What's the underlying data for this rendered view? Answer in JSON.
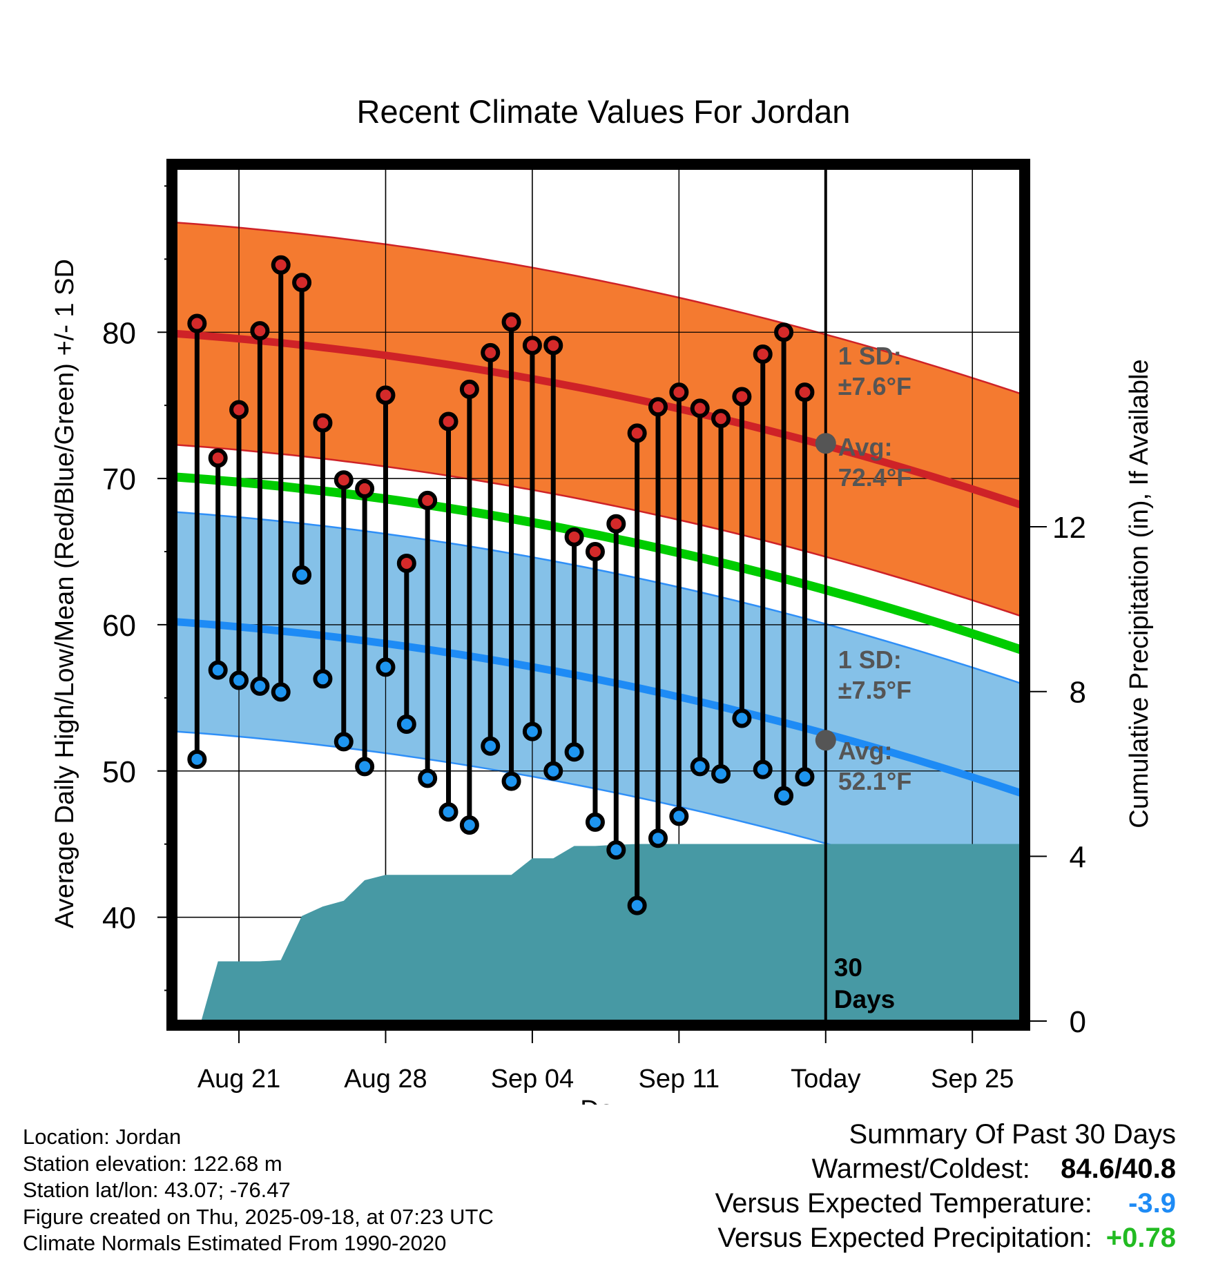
{
  "chart_data": {
    "type": "line",
    "title": "Recent Climate Values For Jordan",
    "xlabel": "Day",
    "ylabel": "Average Daily High/Low/Mean (Red/Blue/Green) +/- 1 SD",
    "y2label": "Cumulative Precipitation (in), If Available",
    "x_ticks": [
      "Aug 21",
      "Aug 28",
      "Sep 04",
      "Sep 11",
      "Today",
      "Sep 25"
    ],
    "x_tick_days": [
      2,
      9,
      16,
      23,
      30,
      37
    ],
    "x_range": [
      -1,
      39.3
    ],
    "ylim": [
      32.9,
      91.2
    ],
    "y_ticks": [
      40,
      50,
      60,
      70,
      80
    ],
    "y2lim": [
      0,
      20.7
    ],
    "y2_ticks": [
      0,
      4,
      8,
      12
    ],
    "today_day": 30,
    "today_label": "30\nDays",
    "high_avg": {
      "start": 79.9,
      "end": 68.2
    },
    "high_sd": 7.6,
    "high_sd_label": "1 SD:\n±7.6°F",
    "high_avg_label": "Avg:\n72.4°F",
    "high_today": 72.4,
    "low_avg": {
      "start": 60.2,
      "end": 48.5
    },
    "low_sd": 7.5,
    "low_sd_label": "1 SD:\n±7.5°F",
    "low_avg_label": "Avg:\n52.1°F",
    "low_today": 52.1,
    "mean_avg": {
      "start": 70.1,
      "end": 58.3
    },
    "daily_highs": [
      80.6,
      71.4,
      74.7,
      80.1,
      84.6,
      83.4,
      73.8,
      69.9,
      69.3,
      75.7,
      64.2,
      68.5,
      73.9,
      76.1,
      78.6,
      80.7,
      79.1,
      79.1,
      66.0,
      65.0,
      66.9,
      73.1,
      74.9,
      75.9,
      74.8,
      74.1,
      75.6,
      78.5,
      80.0,
      75.9
    ],
    "daily_lows": [
      50.8,
      56.9,
      56.2,
      55.8,
      55.4,
      63.4,
      56.3,
      52.0,
      50.3,
      57.1,
      53.2,
      49.5,
      47.2,
      46.3,
      51.7,
      49.3,
      52.7,
      50.0,
      51.3,
      46.5,
      44.6,
      40.8,
      45.4,
      46.9,
      50.3,
      49.8,
      53.6,
      50.1,
      48.3,
      49.6
    ],
    "precip_cumulative": [
      [
        0,
        0
      ],
      [
        1,
        1.45
      ],
      [
        2,
        1.45
      ],
      [
        3,
        1.45
      ],
      [
        4,
        1.48
      ],
      [
        5,
        2.55
      ],
      [
        6,
        2.78
      ],
      [
        7,
        2.92
      ],
      [
        8,
        3.42
      ],
      [
        9,
        3.55
      ],
      [
        10,
        3.55
      ],
      [
        11,
        3.55
      ],
      [
        12,
        3.55
      ],
      [
        13,
        3.55
      ],
      [
        14,
        3.55
      ],
      [
        15,
        3.55
      ],
      [
        16,
        3.95
      ],
      [
        17,
        3.95
      ],
      [
        18,
        4.25
      ],
      [
        19,
        4.25
      ],
      [
        20,
        4.28
      ],
      [
        21,
        4.3
      ],
      [
        22,
        4.3
      ],
      [
        23,
        4.3
      ],
      [
        24,
        4.3
      ],
      [
        25,
        4.3
      ],
      [
        26,
        4.3
      ],
      [
        27,
        4.3
      ],
      [
        28,
        4.3
      ],
      [
        29,
        4.3
      ],
      [
        30,
        4.3
      ],
      [
        39.3,
        4.3
      ]
    ],
    "colors": {
      "high_band": "#F47A30",
      "high_line": "#CE2227",
      "low_band": "#85C1E8",
      "low_line": "#1E8BF5",
      "low_band_edge": "#2F8FF7",
      "mean_line": "#00CC00",
      "precip": "#4799A4",
      "high_dot": "#D42A2A",
      "low_dot": "#1E95F0",
      "today_dot": "#555555",
      "annotation": "#555555"
    }
  },
  "info": {
    "location": "Location: Jordan",
    "elevation": "Station elevation: 122.68 m",
    "latlon": "Station lat/lon: 43.07; -76.47",
    "created": "Figure created on Thu, 2025-09-18, at 07:23 UTC",
    "normals": "Climate Normals Estimated From 1990-2020"
  },
  "summary": {
    "heading": "Summary Of Past 30 Days",
    "warmest_label": "Warmest/Coldest:",
    "warmest_value": "84.6/40.8",
    "temp_label": "Versus Expected Temperature:",
    "temp_value": "-3.9",
    "temp_color": "#1E8BF5",
    "precip_label": "Versus Expected Precipitation:",
    "precip_value": "+0.78",
    "precip_color": "#22BB22"
  }
}
